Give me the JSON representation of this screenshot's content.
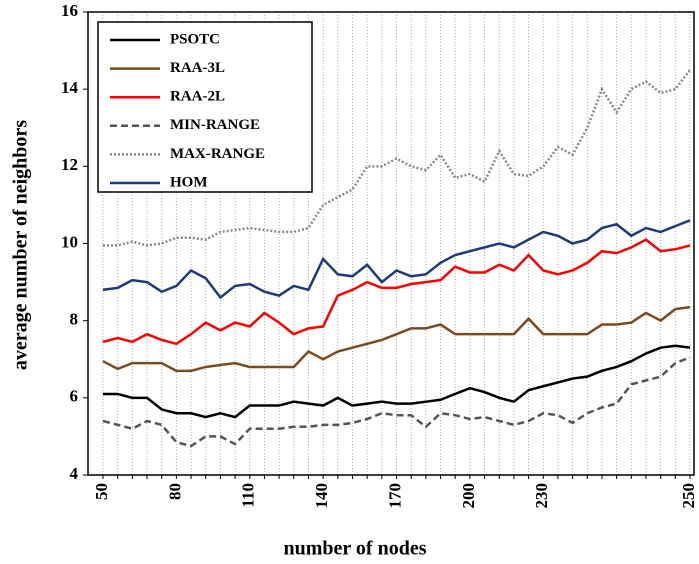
{
  "chart_data": {
    "type": "line",
    "x_label": "number of nodes",
    "y_label": "average number of neighbors",
    "categories": [
      "50",
      null,
      null,
      null,
      null,
      "80",
      null,
      null,
      null,
      null,
      "110",
      null,
      null,
      null,
      null,
      "140",
      null,
      null,
      null,
      null,
      "170",
      null,
      null,
      null,
      null,
      "200",
      null,
      null,
      null,
      null,
      "230",
      null,
      null,
      null,
      null,
      null,
      null,
      null,
      null,
      null,
      "250"
    ],
    "ylim": [
      4,
      16
    ],
    "yticks": [
      4,
      6,
      8,
      10,
      12,
      14,
      16
    ],
    "grid": true,
    "legend": "top-left",
    "series": [
      {
        "name": "PSOTC",
        "color": "#000000",
        "line_style": "solid",
        "values": [
          6.1,
          6.1,
          6.0,
          6.0,
          5.7,
          5.6,
          5.6,
          5.5,
          5.6,
          5.5,
          5.8,
          5.8,
          5.8,
          5.9,
          5.85,
          5.8,
          6.0,
          5.8,
          5.85,
          5.9,
          5.85,
          5.85,
          5.9,
          5.95,
          6.1,
          6.25,
          6.15,
          6.0,
          5.9,
          6.2,
          6.3,
          6.4,
          6.5,
          6.55,
          6.7,
          6.8,
          6.95,
          7.15,
          7.3,
          7.35,
          7.3
        ]
      },
      {
        "name": "RAA-3L",
        "color": "#7b4a1e",
        "line_style": "solid",
        "values": [
          6.95,
          6.75,
          6.9,
          6.9,
          6.9,
          6.7,
          6.7,
          6.8,
          6.85,
          6.9,
          6.8,
          6.8,
          6.8,
          6.8,
          7.2,
          7.0,
          7.2,
          7.3,
          7.4,
          7.5,
          7.65,
          7.8,
          7.8,
          7.9,
          7.65,
          7.65,
          7.65,
          7.65,
          7.65,
          8.05,
          7.65,
          7.65,
          7.65,
          7.65,
          7.9,
          7.9,
          7.95,
          8.2,
          8.0,
          8.3,
          8.35
        ]
      },
      {
        "name": "RAA-2L",
        "color": "#ff0000",
        "line_style": "solid",
        "values": [
          7.45,
          7.55,
          7.45,
          7.65,
          7.5,
          7.4,
          7.65,
          7.95,
          7.75,
          7.95,
          7.85,
          8.2,
          7.95,
          7.65,
          7.8,
          7.85,
          8.65,
          8.8,
          9.0,
          8.85,
          8.85,
          8.95,
          9.0,
          9.05,
          9.4,
          9.25,
          9.25,
          9.45,
          9.3,
          9.7,
          9.3,
          9.2,
          9.3,
          9.5,
          9.8,
          9.75,
          9.9,
          10.1,
          9.8,
          9.85,
          9.95
        ]
      },
      {
        "name": "MIN-RANGE",
        "color": "#555555",
        "line_style": "dashed",
        "values": [
          5.4,
          5.3,
          5.2,
          5.4,
          5.3,
          4.85,
          4.75,
          5.0,
          5.0,
          4.8,
          5.2,
          5.2,
          5.2,
          5.25,
          5.25,
          5.3,
          5.3,
          5.35,
          5.45,
          5.6,
          5.55,
          5.55,
          5.25,
          5.6,
          5.55,
          5.45,
          5.5,
          5.4,
          5.3,
          5.4,
          5.6,
          5.55,
          5.35,
          5.6,
          5.75,
          5.85,
          6.35,
          6.45,
          6.55,
          6.9,
          7.05
        ]
      },
      {
        "name": "MAX-RANGE",
        "color": "#888888",
        "line_style": "dotted",
        "values": [
          9.95,
          9.95,
          10.05,
          9.95,
          10.0,
          10.15,
          10.15,
          10.1,
          10.3,
          10.35,
          10.4,
          10.35,
          10.3,
          10.3,
          10.4,
          11.0,
          11.2,
          11.4,
          12.0,
          12.0,
          12.2,
          12.0,
          11.9,
          12.3,
          11.7,
          11.8,
          11.6,
          12.4,
          11.8,
          11.75,
          12.0,
          12.5,
          12.3,
          13.0,
          14.0,
          13.4,
          14.0,
          14.2,
          13.9,
          14.0,
          14.5
        ]
      },
      {
        "name": "HOM",
        "color": "#1f3a7a",
        "line_style": "solid",
        "values": [
          8.8,
          8.85,
          9.05,
          9.0,
          8.75,
          8.9,
          9.3,
          9.1,
          8.6,
          8.9,
          8.95,
          8.75,
          8.65,
          8.9,
          8.8,
          9.6,
          9.2,
          9.15,
          9.45,
          9.0,
          9.3,
          9.15,
          9.2,
          9.5,
          9.7,
          9.8,
          9.9,
          10.0,
          9.9,
          10.1,
          10.3,
          10.2,
          10.0,
          10.1,
          10.4,
          10.5,
          10.2,
          10.4,
          10.3,
          10.45,
          10.6
        ]
      }
    ]
  }
}
